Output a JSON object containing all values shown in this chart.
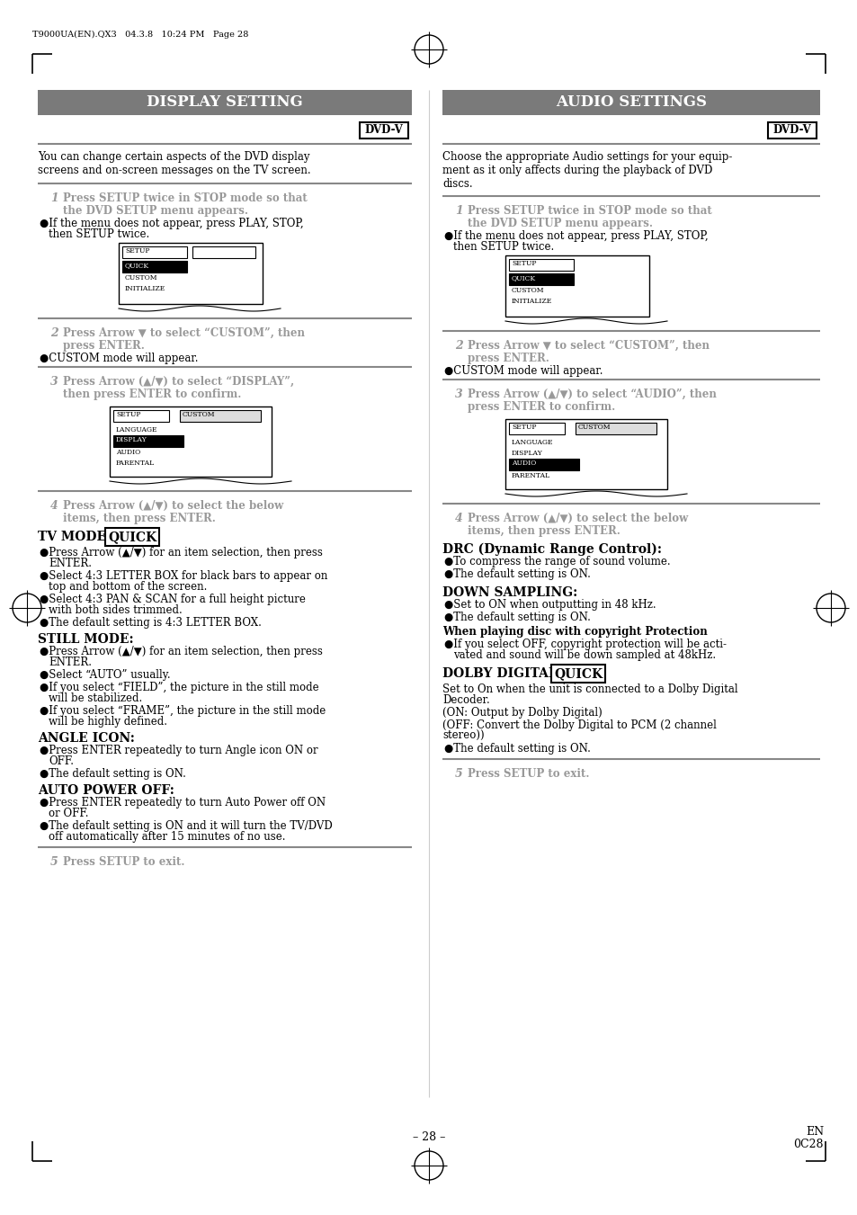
{
  "bg_color": "#ffffff",
  "header_bg": "#7a7a7a",
  "header_text_color": "#ffffff",
  "body_text_color": "#000000",
  "gray_text_color": "#999999",
  "dvdv_border_color": "#000000",
  "title_left": "DISPLAY SETTING",
  "title_right": "AUDIO SETTINGS",
  "page_num": "– 28 –",
  "header_meta": "T9000UA(EN).QX3   04.3.8   10:24 PM   Page 28",
  "fig_w": 9.54,
  "fig_h": 13.51,
  "dpi": 100
}
